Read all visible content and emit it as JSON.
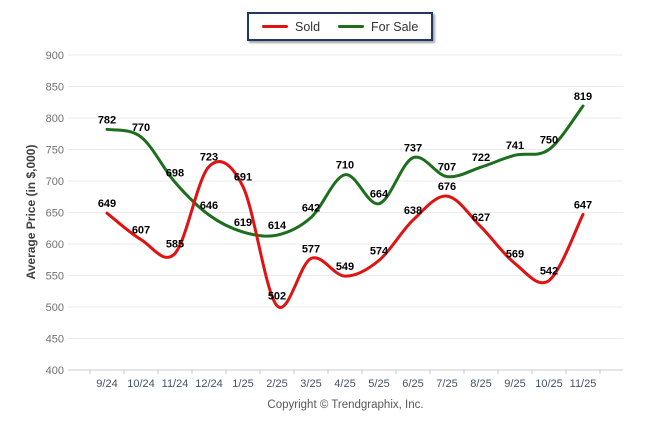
{
  "legend": {
    "items": [
      {
        "label": "Sold",
        "color": "#e01212"
      },
      {
        "label": "For Sale",
        "color": "#1d6f1d"
      }
    ]
  },
  "footer": {
    "copyright": "Copyright © Trendgraphix, Inc."
  },
  "chart_data": {
    "type": "line",
    "title": "",
    "xlabel": "",
    "ylabel": "Average Price (in $,000)",
    "categories": [
      "9/24",
      "10/24",
      "11/24",
      "12/24",
      "1/25",
      "2/25",
      "3/25",
      "4/25",
      "5/25",
      "6/25",
      "7/25",
      "8/25",
      "9/25",
      "10/25",
      "11/25"
    ],
    "series": [
      {
        "name": "Sold",
        "color": "#e01212",
        "values": [
          649,
          607,
          585,
          723,
          691,
          502,
          577,
          549,
          574,
          638,
          676,
          627,
          569,
          542,
          647
        ]
      },
      {
        "name": "For Sale",
        "color": "#1d6f1d",
        "values": [
          782,
          770,
          698,
          646,
          619,
          614,
          642,
          710,
          664,
          737,
          707,
          722,
          741,
          750,
          819
        ]
      }
    ],
    "ylim": [
      400,
      900
    ],
    "yticks": [
      400,
      450,
      500,
      550,
      600,
      650,
      700,
      750,
      800,
      850,
      900
    ],
    "grid": "horizontal",
    "smooth": true,
    "legend_position": "top-center",
    "data_labels": true
  },
  "style": {
    "grid_color": "#ebebeb",
    "axis_color": "#c9c9c9",
    "y_tick_label_color": "#707070",
    "x_tick_label_color": "#44546a",
    "data_label_color": "#000000"
  }
}
